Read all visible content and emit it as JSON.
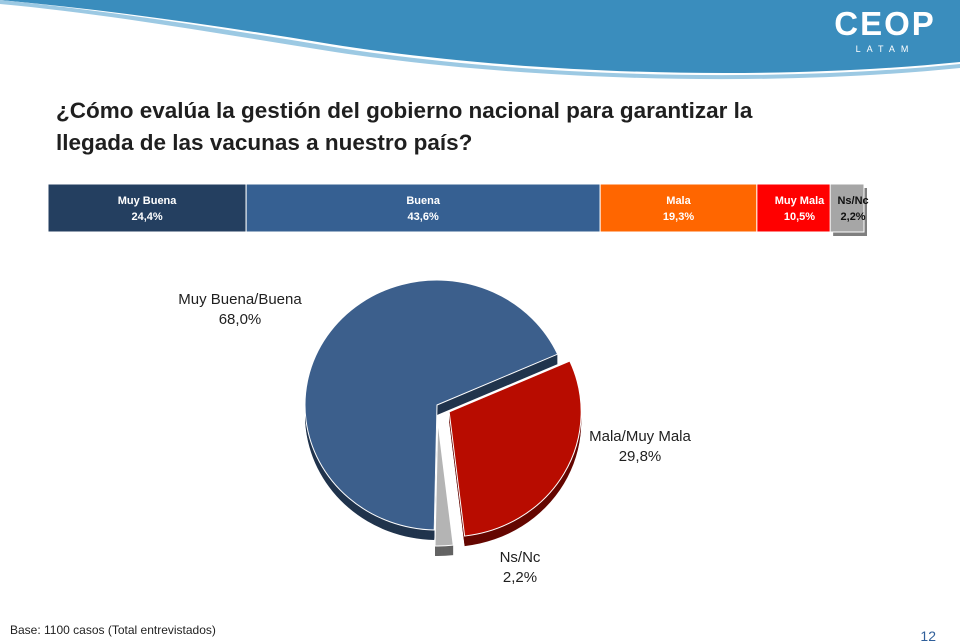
{
  "brand": {
    "logo": "CEOP",
    "logo_sub": "LATAM"
  },
  "title": "¿Cómo evalúa la gestión del gobierno nacional para garantizar la llegada de las vacunas a nuestro país?",
  "footnote": "Base: 1100 casos (Total entrevistados)",
  "page_number": "12",
  "colors": {
    "header": "#3a8dbd"
  },
  "chart_data": [
    {
      "type": "bar",
      "orientation": "horizontal-stacked-100",
      "series": [
        {
          "name": "Muy Buena",
          "value": 24.4,
          "label": "24,4%",
          "color": "#243f60"
        },
        {
          "name": "Buena",
          "value": 43.6,
          "label": "43,6%",
          "color": "#366092"
        },
        {
          "name": "Mala",
          "value": 19.3,
          "label": "19,3%",
          "color": "#ff6600"
        },
        {
          "name": "Muy Mala",
          "value": 10.5,
          "label": "10,5%",
          "color": "#ff0000"
        },
        {
          "name": "Ns/Nc",
          "value": 2.2,
          "label": "2,2%",
          "color": "#a6a6a6"
        }
      ]
    },
    {
      "type": "pie",
      "slices": [
        {
          "name": "Muy Buena/Buena",
          "value": 68.0,
          "label": "68,0%",
          "color": "#3c5f8c"
        },
        {
          "name": "Mala/Muy Mala",
          "value": 29.8,
          "label": "29,8%",
          "color": "#b80c00"
        },
        {
          "name": "Ns/Nc",
          "value": 2.2,
          "label": "2,2%",
          "color": "#b4b4b4"
        }
      ]
    }
  ]
}
